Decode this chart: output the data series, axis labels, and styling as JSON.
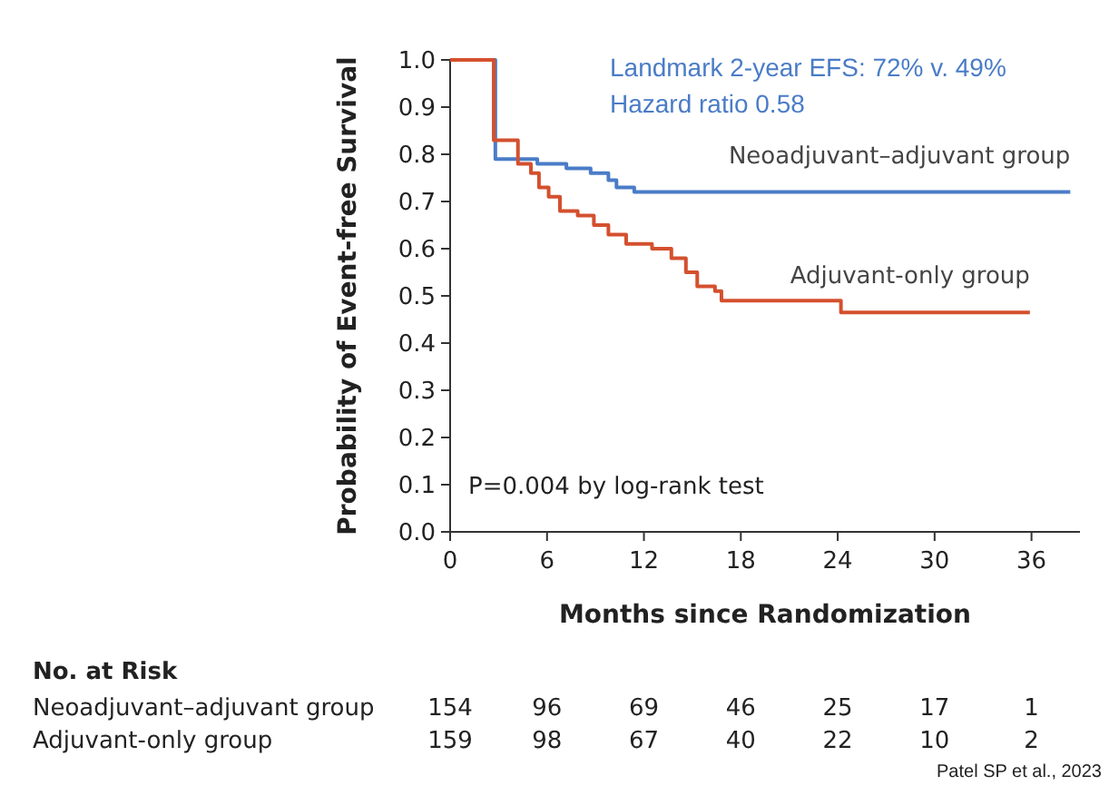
{
  "chart_data": {
    "type": "step",
    "xlabel": "Months since Randomization",
    "ylabel": "Probability of Event-free Survival",
    "xlim": [
      0,
      39
    ],
    "xticks": [
      0,
      6,
      12,
      18,
      24,
      30,
      36
    ],
    "ylim": [
      0,
      1
    ],
    "yticks": [
      {
        "value": 0,
        "label": "0.0"
      },
      0.1,
      0.2,
      0.3,
      0.4,
      0.5,
      0.6,
      0.7,
      0.8,
      0.9,
      {
        "value": 1,
        "label": "1.0"
      }
    ],
    "grid": false,
    "legend": false,
    "series": [
      {
        "name": "Neoadjuvant–adjuvant group",
        "color": "#4a7cc7",
        "x": [
          0,
          2.8,
          5.4,
          7.2,
          8.7,
          9.8,
          10.3,
          11.4,
          38.4
        ],
        "values": [
          1,
          0.79,
          0.78,
          0.77,
          0.76,
          0.745,
          0.73,
          0.72,
          0.72
        ]
      },
      {
        "name": "Adjuvant-only group",
        "color": "#d4502e",
        "x": [
          0,
          2.7,
          4.2,
          5,
          5.5,
          6.1,
          6.8,
          7.9,
          8.9,
          9.8,
          10.9,
          12.5,
          13.7,
          14.6,
          15.3,
          16.4,
          16.8,
          24.2,
          35.9
        ],
        "values": [
          1,
          0.83,
          0.78,
          0.76,
          0.73,
          0.71,
          0.68,
          0.67,
          0.65,
          0.63,
          0.61,
          0.6,
          0.58,
          0.55,
          0.52,
          0.51,
          0.49,
          0.465,
          0.465
        ]
      }
    ],
    "annotations": [
      "Landmark 2-year EFS: 72% v. 49%",
      "Hazard ratio 0.58",
      "P=0.004 by log-rank test",
      "No. at Risk",
      "Neoadjuvant–adjuvant group",
      "Adjuvant-only group",
      "Patel SP et al., 2023",
      "154",
      "96",
      "69",
      "46",
      "25",
      "17",
      "1",
      "159",
      "98",
      "67",
      "40",
      "22",
      "10",
      "2"
    ]
  }
}
